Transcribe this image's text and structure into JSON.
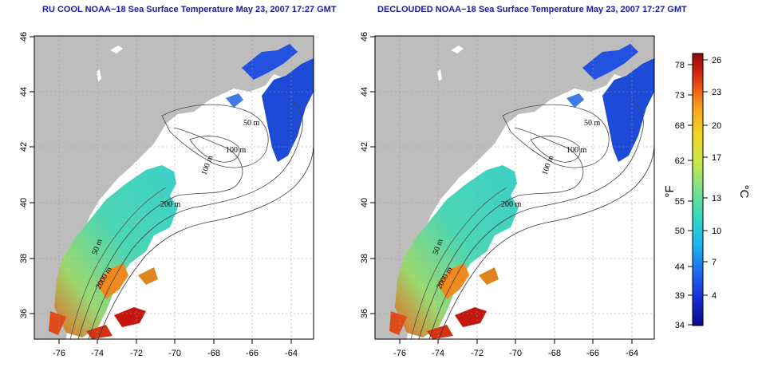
{
  "panels": [
    {
      "title": "RU COOL NOAA−18 Sea Surface Temperature May 23, 2007 17:27 GMT",
      "contour_labels": [
        "50 m",
        "100 m",
        "200 m",
        "50 m",
        "2000 m",
        "100 m"
      ]
    },
    {
      "title": "DECLOUDED NOAA−18 Sea Surface Temperature May 23, 2007 17:27 GMT",
      "contour_labels": [
        "50 m",
        "100 m",
        "200 m",
        "50 m",
        "2000 m",
        "100 m"
      ]
    }
  ],
  "axes": {
    "lat_ticks": [
      "46",
      "44",
      "42",
      "40",
      "38",
      "36"
    ],
    "lon_ticks": [
      "-76",
      "-74",
      "-72",
      "-70",
      "-68",
      "-66",
      "-64"
    ]
  },
  "colorbar": {
    "fahrenheit_unit": "°F",
    "celsius_unit": "°C",
    "fahrenheit_ticks": [
      "78",
      "73",
      "68",
      "62",
      "55",
      "50",
      "44",
      "39",
      "34"
    ],
    "celsius_ticks": [
      "26",
      "23",
      "20",
      "17",
      "13",
      "10",
      "7",
      "4"
    ],
    "colors": [
      "#0a0a8c",
      "#1a2cd8",
      "#1e6ef0",
      "#18b6f0",
      "#36d8c0",
      "#7ae08a",
      "#c8e84a",
      "#f2d624",
      "#f7a21c",
      "#ef5a18",
      "#cc1c10",
      "#8a0a08"
    ]
  }
}
